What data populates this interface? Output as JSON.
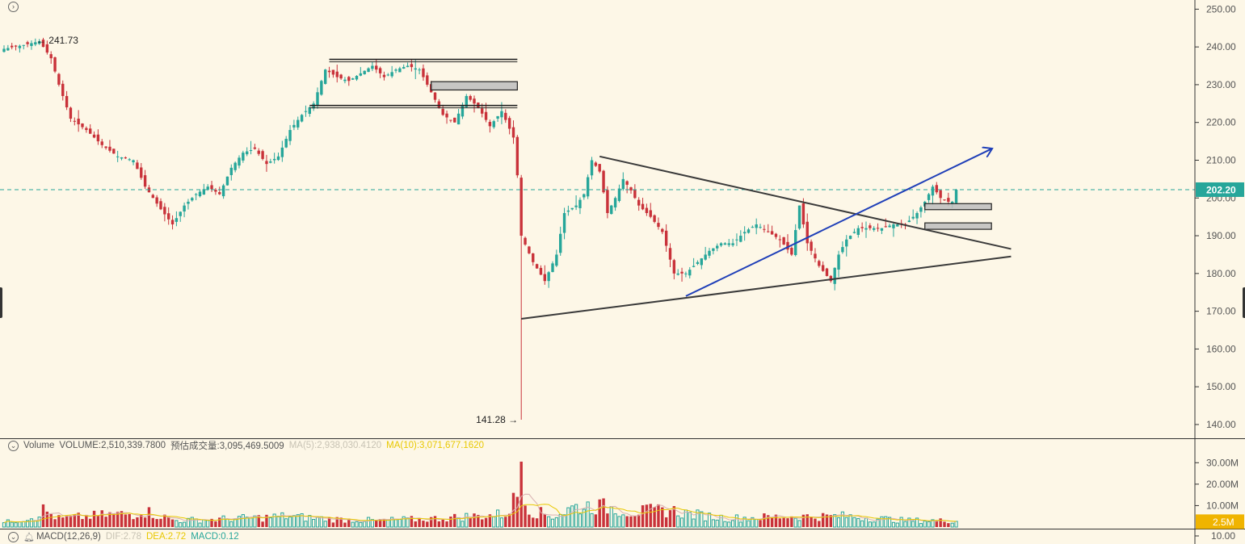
{
  "colors": {
    "background": "#fdf7e7",
    "up": "#26a69a",
    "down": "#c9323a",
    "grid_axis": "#333333",
    "last_price": "#26a69a",
    "trend_blue": "#1f3fb8",
    "trend_dark": "#3a3a3a",
    "ma5": "#d8b0b0",
    "ma10": "#e8c800"
  },
  "price_axis": {
    "ticks": [
      "250.00",
      "240.00",
      "230.00",
      "220.00",
      "210.00",
      "200.00",
      "190.00",
      "180.00",
      "170.00",
      "160.00",
      "150.00",
      "140.00"
    ],
    "last_price_label": "202.20"
  },
  "volume_axis": {
    "ticks": [
      "30.00M",
      "20.00M",
      "10.00M"
    ],
    "current_label": "2.5M"
  },
  "macd_axis": {
    "ticks": [
      "10.00"
    ]
  },
  "annotations": {
    "high_label": "241.73",
    "low_label": "141.28"
  },
  "volume_legend": {
    "name": "Volume",
    "volume": "VOLUME:2,510,339.7800",
    "estimated": "预估成交量:3,095,469.5009",
    "ma5": "MA(5):2,938,030.4120",
    "ma10": "MA(10):3,071,677.1620"
  },
  "macd_legend": {
    "name": "MACD(12,26,9)",
    "dif": "DIF:2.78",
    "dea": "DEA:2.72",
    "macd": "MACD:0.12"
  },
  "icons": {
    "expand": "chevron-right-circle-icon",
    "collapse_volume": "chevron-down-circle-icon",
    "collapse_macd": "chevron-down-circle-icon",
    "alarm": "bell-icon"
  },
  "chart_data": {
    "type": "candlestick",
    "price_range": [
      137,
      252
    ],
    "last_price": 202.2,
    "high": 241.73,
    "low": 141.28,
    "anchors": [
      [
        0,
        239.5
      ],
      [
        5,
        240.5
      ],
      [
        9,
        241.5
      ],
      [
        12,
        237
      ],
      [
        14,
        230
      ],
      [
        17,
        221
      ],
      [
        21,
        218
      ],
      [
        25,
        214
      ],
      [
        29,
        211
      ],
      [
        33,
        210
      ],
      [
        36,
        203
      ],
      [
        40,
        197
      ],
      [
        43,
        193
      ],
      [
        46,
        198
      ],
      [
        49,
        201
      ],
      [
        52,
        203
      ],
      [
        55,
        201
      ],
      [
        58,
        208
      ],
      [
        61,
        212
      ],
      [
        64,
        213
      ],
      [
        67,
        209
      ],
      [
        70,
        211
      ],
      [
        73,
        218
      ],
      [
        76,
        222
      ],
      [
        79,
        225
      ],
      [
        82,
        234
      ],
      [
        85,
        232
      ],
      [
        88,
        231
      ],
      [
        91,
        233
      ],
      [
        94,
        235
      ],
      [
        97,
        232
      ],
      [
        100,
        234
      ],
      [
        103,
        235
      ],
      [
        106,
        234
      ],
      [
        109,
        228
      ],
      [
        112,
        222
      ],
      [
        115,
        220
      ],
      [
        118,
        227
      ],
      [
        121,
        224
      ],
      [
        124,
        219
      ],
      [
        127,
        223
      ],
      [
        130,
        216
      ],
      [
        131,
        206
      ],
      [
        132,
        190
      ],
      [
        135,
        183
      ],
      [
        138,
        178
      ],
      [
        141,
        185
      ],
      [
        143,
        196
      ],
      [
        146,
        198
      ],
      [
        148,
        201
      ],
      [
        150,
        210
      ],
      [
        152,
        207
      ],
      [
        154,
        196
      ],
      [
        156,
        200
      ],
      [
        158,
        205
      ],
      [
        160,
        202
      ],
      [
        162,
        198
      ],
      [
        165,
        195
      ],
      [
        168,
        191
      ],
      [
        171,
        180
      ],
      [
        174,
        180
      ],
      [
        177,
        183
      ],
      [
        180,
        186
      ],
      [
        183,
        188
      ],
      [
        186,
        188
      ],
      [
        189,
        191
      ],
      [
        192,
        193
      ],
      [
        195,
        191
      ],
      [
        198,
        189
      ],
      [
        201,
        185
      ],
      [
        203,
        198
      ],
      [
        205,
        188
      ],
      [
        208,
        182
      ],
      [
        211,
        178
      ],
      [
        213,
        185
      ],
      [
        215,
        189
      ],
      [
        218,
        192
      ],
      [
        221,
        192
      ],
      [
        224,
        192
      ],
      [
        227,
        193
      ],
      [
        230,
        193
      ],
      [
        233,
        196
      ],
      [
        235,
        199
      ],
      [
        237,
        203
      ],
      [
        239,
        200
      ],
      [
        241,
        199
      ],
      [
        243,
        199
      ]
    ],
    "vol_anchors": [
      [
        0,
        2
      ],
      [
        8,
        5
      ],
      [
        10,
        8
      ],
      [
        14,
        4
      ],
      [
        28,
        6
      ],
      [
        33,
        6
      ],
      [
        35,
        8
      ],
      [
        44,
        3
      ],
      [
        60,
        4
      ],
      [
        72,
        5
      ],
      [
        80,
        4
      ],
      [
        95,
        3
      ],
      [
        110,
        4
      ],
      [
        128,
        6
      ],
      [
        131,
        15
      ],
      [
        132,
        28
      ],
      [
        134,
        8
      ],
      [
        140,
        5
      ],
      [
        143,
        7
      ],
      [
        145,
        9
      ],
      [
        150,
        10
      ],
      [
        155,
        9
      ],
      [
        160,
        7
      ],
      [
        170,
        8
      ],
      [
        175,
        6
      ],
      [
        185,
        4
      ],
      [
        200,
        5
      ],
      [
        215,
        5
      ],
      [
        230,
        3
      ],
      [
        243,
        3
      ]
    ],
    "annotations": [
      {
        "label": "241.73",
        "at_candle": 7,
        "value": 241.73
      },
      {
        "label": "141.28",
        "at_candle": 132,
        "value": 141.28
      }
    ],
    "support_resistance": [
      {
        "from": 83,
        "to": 131,
        "value": 236.7
      },
      {
        "from": 78,
        "to": 131,
        "value": 224.5
      }
    ],
    "zones": [
      {
        "from": 109,
        "to": 131,
        "top": 230.8,
        "bottom": 228.6
      },
      {
        "from": 235,
        "to": 252,
        "top": 198.5,
        "bottom": 196.9
      },
      {
        "from": 235,
        "to": 252,
        "top": 193.4,
        "bottom": 191.7
      }
    ],
    "trendlines": [
      {
        "from": [
          152,
          211
        ],
        "to": [
          257,
          186.5
        ],
        "color": "dark"
      },
      {
        "from": [
          132,
          168
        ],
        "to": [
          257,
          184.5
        ],
        "color": "dark"
      },
      {
        "from": [
          174,
          174
        ],
        "to": [
          252,
          213
        ],
        "color": "blue",
        "arrow": true
      }
    ]
  }
}
